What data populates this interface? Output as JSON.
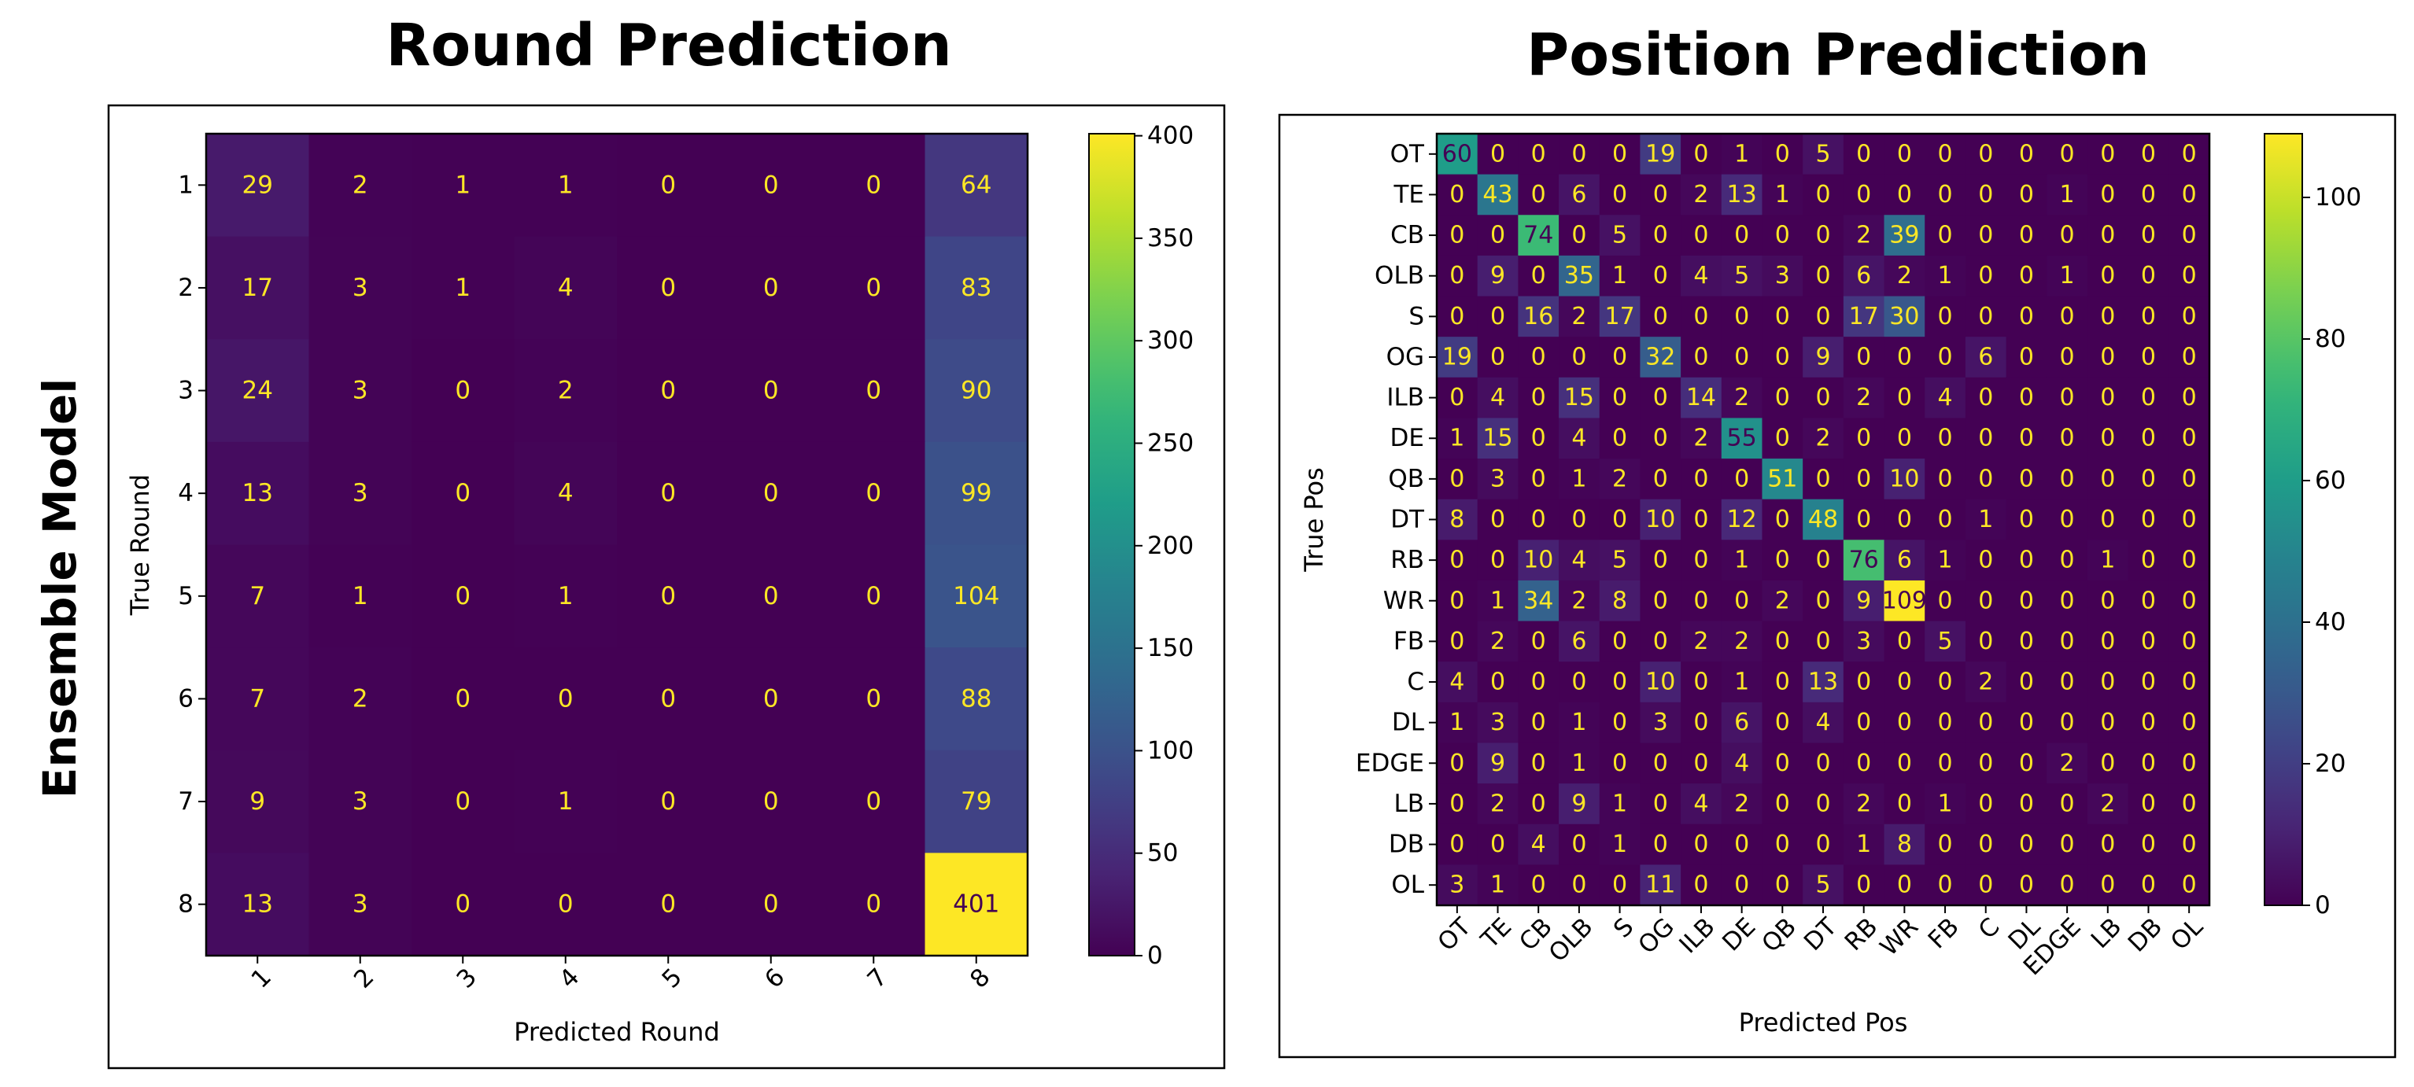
{
  "figure": {
    "row_label": "Ensemble Model"
  },
  "colormap": [
    "#440154",
    "#482878",
    "#3e4a89",
    "#31688e",
    "#26828e",
    "#1f9e89",
    "#35b779",
    "#6ece58",
    "#b5de2b",
    "#fde725"
  ],
  "chart_data": [
    {
      "type": "heatmap",
      "title": "Round Prediction",
      "xlabel": "Predicted Round",
      "ylabel": "True Round",
      "x_categories": [
        "1",
        "2",
        "3",
        "4",
        "5",
        "6",
        "7",
        "8"
      ],
      "y_categories": [
        "1",
        "2",
        "3",
        "4",
        "5",
        "6",
        "7",
        "8"
      ],
      "values": [
        [
          29,
          2,
          1,
          1,
          0,
          0,
          0,
          64
        ],
        [
          17,
          3,
          1,
          4,
          0,
          0,
          0,
          83
        ],
        [
          24,
          3,
          0,
          2,
          0,
          0,
          0,
          90
        ],
        [
          13,
          3,
          0,
          4,
          0,
          0,
          0,
          99
        ],
        [
          7,
          1,
          0,
          1,
          0,
          0,
          0,
          104
        ],
        [
          7,
          2,
          0,
          0,
          0,
          0,
          0,
          88
        ],
        [
          9,
          3,
          0,
          1,
          0,
          0,
          0,
          79
        ],
        [
          13,
          3,
          0,
          0,
          0,
          0,
          0,
          401
        ]
      ],
      "vmin": 0,
      "vmax": 401,
      "colorbar_ticks": [
        0,
        50,
        100,
        150,
        200,
        250,
        300,
        350,
        400
      ]
    },
    {
      "type": "heatmap",
      "title": "Position Prediction",
      "xlabel": "Predicted Pos",
      "ylabel": "True Pos",
      "x_categories": [
        "OT",
        "TE",
        "CB",
        "OLB",
        "S",
        "OG",
        "ILB",
        "DE",
        "QB",
        "DT",
        "RB",
        "WR",
        "FB",
        "C",
        "DL",
        "EDGE",
        "LB",
        "DB",
        "OL"
      ],
      "y_categories": [
        "OT",
        "TE",
        "CB",
        "OLB",
        "S",
        "OG",
        "ILB",
        "DE",
        "QB",
        "DT",
        "RB",
        "WR",
        "FB",
        "C",
        "DL",
        "EDGE",
        "LB",
        "DB",
        "OL"
      ],
      "values": [
        [
          60,
          0,
          0,
          0,
          0,
          19,
          0,
          1,
          0,
          5,
          0,
          0,
          0,
          0,
          0,
          0,
          0,
          0,
          0
        ],
        [
          0,
          43,
          0,
          6,
          0,
          0,
          2,
          13,
          1,
          0,
          0,
          0,
          0,
          0,
          0,
          1,
          0,
          0,
          0
        ],
        [
          0,
          0,
          74,
          0,
          5,
          0,
          0,
          0,
          0,
          0,
          2,
          39,
          0,
          0,
          0,
          0,
          0,
          0,
          0
        ],
        [
          0,
          9,
          0,
          35,
          1,
          0,
          4,
          5,
          3,
          0,
          6,
          2,
          1,
          0,
          0,
          1,
          0,
          0,
          0
        ],
        [
          0,
          0,
          16,
          2,
          17,
          0,
          0,
          0,
          0,
          0,
          17,
          30,
          0,
          0,
          0,
          0,
          0,
          0,
          0
        ],
        [
          19,
          0,
          0,
          0,
          0,
          32,
          0,
          0,
          0,
          9,
          0,
          0,
          0,
          6,
          0,
          0,
          0,
          0,
          0
        ],
        [
          0,
          4,
          0,
          15,
          0,
          0,
          14,
          2,
          0,
          0,
          2,
          0,
          4,
          0,
          0,
          0,
          0,
          0,
          0
        ],
        [
          1,
          15,
          0,
          4,
          0,
          0,
          2,
          55,
          0,
          2,
          0,
          0,
          0,
          0,
          0,
          0,
          0,
          0,
          0
        ],
        [
          0,
          3,
          0,
          1,
          2,
          0,
          0,
          0,
          51,
          0,
          0,
          10,
          0,
          0,
          0,
          0,
          0,
          0,
          0
        ],
        [
          8,
          0,
          0,
          0,
          0,
          10,
          0,
          12,
          0,
          48,
          0,
          0,
          0,
          1,
          0,
          0,
          0,
          0,
          0
        ],
        [
          0,
          0,
          10,
          4,
          5,
          0,
          0,
          1,
          0,
          0,
          76,
          6,
          1,
          0,
          0,
          0,
          1,
          0,
          0
        ],
        [
          0,
          1,
          34,
          2,
          8,
          0,
          0,
          0,
          2,
          0,
          9,
          109,
          0,
          0,
          0,
          0,
          0,
          0,
          0
        ],
        [
          0,
          2,
          0,
          6,
          0,
          0,
          2,
          2,
          0,
          0,
          3,
          0,
          5,
          0,
          0,
          0,
          0,
          0,
          0
        ],
        [
          4,
          0,
          0,
          0,
          0,
          10,
          0,
          1,
          0,
          13,
          0,
          0,
          0,
          2,
          0,
          0,
          0,
          0,
          0
        ],
        [
          1,
          3,
          0,
          1,
          0,
          3,
          0,
          6,
          0,
          4,
          0,
          0,
          0,
          0,
          0,
          0,
          0,
          0,
          0
        ],
        [
          0,
          9,
          0,
          1,
          0,
          0,
          0,
          4,
          0,
          0,
          0,
          0,
          0,
          0,
          0,
          2,
          0,
          0,
          0
        ],
        [
          0,
          2,
          0,
          9,
          1,
          0,
          4,
          2,
          0,
          0,
          2,
          0,
          1,
          0,
          0,
          0,
          2,
          0,
          0
        ],
        [
          0,
          0,
          4,
          0,
          1,
          0,
          0,
          0,
          0,
          0,
          1,
          8,
          0,
          0,
          0,
          0,
          0,
          0,
          0
        ],
        [
          3,
          1,
          0,
          0,
          0,
          11,
          0,
          0,
          0,
          5,
          0,
          0,
          0,
          0,
          0,
          0,
          0,
          0,
          0
        ]
      ],
      "vmin": 0,
      "vmax": 109,
      "colorbar_ticks": [
        0,
        20,
        40,
        60,
        80,
        100
      ]
    }
  ]
}
